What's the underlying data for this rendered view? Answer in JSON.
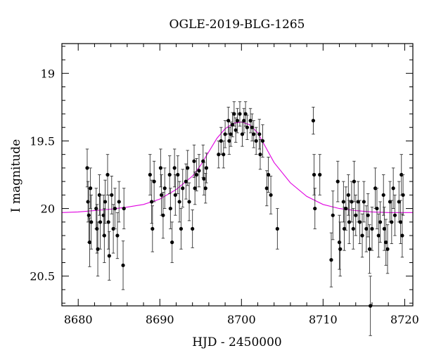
{
  "chart_data": {
    "type": "scatter",
    "title": "OGLE-2019-BLG-1265",
    "xlabel": "HJD - 2450000",
    "ylabel": "I magnitude",
    "xlim": [
      8678,
      8721
    ],
    "ylim": [
      20.72,
      18.78
    ],
    "y_inverted": true,
    "xticks": [
      8680,
      8690,
      8700,
      8710,
      8720
    ],
    "yticks": [
      19,
      19.5,
      20,
      20.5
    ],
    "grid": false,
    "colors": {
      "points": "#000000",
      "model": "#e000e0"
    },
    "model": {
      "name": "",
      "x": [
        8678,
        8680,
        8682,
        8684,
        8686,
        8688,
        8690,
        8692,
        8694,
        8695,
        8696,
        8697,
        8698,
        8699,
        8700,
        8701,
        8702,
        8703,
        8704,
        8706,
        8708,
        8710,
        8712,
        8714,
        8716,
        8718,
        8720,
        8721
      ],
      "y": [
        20.03,
        20.025,
        20.015,
        20.005,
        19.99,
        19.97,
        19.93,
        19.86,
        19.76,
        19.68,
        19.58,
        19.48,
        19.41,
        19.37,
        19.36,
        19.38,
        19.44,
        19.55,
        19.66,
        19.81,
        19.91,
        19.97,
        20.0,
        20.015,
        20.025,
        20.03,
        20.03,
        20.03
      ]
    },
    "series": [
      {
        "name": "",
        "points": [
          {
            "x": 8681.1,
            "y": 19.7,
            "err": 0.14
          },
          {
            "x": 8681.2,
            "y": 19.95,
            "err": 0.15
          },
          {
            "x": 8681.3,
            "y": 20.05,
            "err": 0.2
          },
          {
            "x": 8681.4,
            "y": 20.25,
            "err": 0.18
          },
          {
            "x": 8681.5,
            "y": 19.85,
            "err": 0.15
          },
          {
            "x": 8681.6,
            "y": 20.1,
            "err": 0.2
          },
          {
            "x": 8682.2,
            "y": 20.0,
            "err": 0.15
          },
          {
            "x": 8682.3,
            "y": 20.15,
            "err": 0.18
          },
          {
            "x": 8682.4,
            "y": 20.3,
            "err": 0.2
          },
          {
            "x": 8682.6,
            "y": 19.9,
            "err": 0.15
          },
          {
            "x": 8682.7,
            "y": 20.1,
            "err": 0.2
          },
          {
            "x": 8683.1,
            "y": 20.05,
            "err": 0.15
          },
          {
            "x": 8683.2,
            "y": 20.2,
            "err": 0.2
          },
          {
            "x": 8683.3,
            "y": 19.95,
            "err": 0.16
          },
          {
            "x": 8683.6,
            "y": 19.75,
            "err": 0.15
          },
          {
            "x": 8683.7,
            "y": 20.1,
            "err": 0.2
          },
          {
            "x": 8683.8,
            "y": 20.35,
            "err": 0.18
          },
          {
            "x": 8684.1,
            "y": 19.9,
            "err": 0.14
          },
          {
            "x": 8684.3,
            "y": 20.15,
            "err": 0.18
          },
          {
            "x": 8684.5,
            "y": 20.0,
            "err": 0.15
          },
          {
            "x": 8684.8,
            "y": 20.2,
            "err": 0.17
          },
          {
            "x": 8685.0,
            "y": 19.95,
            "err": 0.15
          },
          {
            "x": 8685.5,
            "y": 20.42,
            "err": 0.18
          },
          {
            "x": 8685.6,
            "y": 20.0,
            "err": 0.15
          },
          {
            "x": 8688.8,
            "y": 19.75,
            "err": 0.15
          },
          {
            "x": 8689.0,
            "y": 19.95,
            "err": 0.16
          },
          {
            "x": 8689.1,
            "y": 20.15,
            "err": 0.17
          },
          {
            "x": 8689.3,
            "y": 19.8,
            "err": 0.15
          },
          {
            "x": 8690.1,
            "y": 19.7,
            "err": 0.14
          },
          {
            "x": 8690.2,
            "y": 19.9,
            "err": 0.15
          },
          {
            "x": 8690.4,
            "y": 20.05,
            "err": 0.17
          },
          {
            "x": 8690.6,
            "y": 19.85,
            "err": 0.15
          },
          {
            "x": 8691.2,
            "y": 19.75,
            "err": 0.14
          },
          {
            "x": 8691.3,
            "y": 20.0,
            "err": 0.15
          },
          {
            "x": 8691.5,
            "y": 20.25,
            "err": 0.15
          },
          {
            "x": 8691.8,
            "y": 19.7,
            "err": 0.14
          },
          {
            "x": 8691.9,
            "y": 19.9,
            "err": 0.15
          },
          {
            "x": 8692.2,
            "y": 19.75,
            "err": 0.14
          },
          {
            "x": 8692.4,
            "y": 19.95,
            "err": 0.15
          },
          {
            "x": 8692.6,
            "y": 20.15,
            "err": 0.15
          },
          {
            "x": 8692.8,
            "y": 19.85,
            "err": 0.14
          },
          {
            "x": 8693.2,
            "y": 19.8,
            "err": 0.13
          },
          {
            "x": 8693.4,
            "y": 19.7,
            "err": 0.13
          },
          {
            "x": 8693.6,
            "y": 19.95,
            "err": 0.14
          },
          {
            "x": 8694.0,
            "y": 20.15,
            "err": 0.14
          },
          {
            "x": 8694.2,
            "y": 19.65,
            "err": 0.12
          },
          {
            "x": 8694.3,
            "y": 19.85,
            "err": 0.12
          },
          {
            "x": 8694.5,
            "y": 19.75,
            "err": 0.12
          },
          {
            "x": 8694.8,
            "y": 19.72,
            "err": 0.12
          },
          {
            "x": 8695.3,
            "y": 19.65,
            "err": 0.12
          },
          {
            "x": 8695.4,
            "y": 19.78,
            "err": 0.12
          },
          {
            "x": 8695.6,
            "y": 19.85,
            "err": 0.11
          },
          {
            "x": 8695.7,
            "y": 19.7,
            "err": 0.11
          },
          {
            "x": 8697.2,
            "y": 19.6,
            "err": 0.1
          },
          {
            "x": 8697.5,
            "y": 19.5,
            "err": 0.1
          },
          {
            "x": 8697.8,
            "y": 19.6,
            "err": 0.1
          },
          {
            "x": 8698.0,
            "y": 19.45,
            "err": 0.1
          },
          {
            "x": 8698.4,
            "y": 19.35,
            "err": 0.1
          },
          {
            "x": 8698.5,
            "y": 19.5,
            "err": 0.1
          },
          {
            "x": 8698.7,
            "y": 19.45,
            "err": 0.09
          },
          {
            "x": 8698.9,
            "y": 19.38,
            "err": 0.09
          },
          {
            "x": 8699.1,
            "y": 19.3,
            "err": 0.09
          },
          {
            "x": 8699.3,
            "y": 19.42,
            "err": 0.09
          },
          {
            "x": 8699.5,
            "y": 19.35,
            "err": 0.09
          },
          {
            "x": 8699.8,
            "y": 19.3,
            "err": 0.09
          },
          {
            "x": 8700.1,
            "y": 19.45,
            "err": 0.09
          },
          {
            "x": 8700.3,
            "y": 19.35,
            "err": 0.09
          },
          {
            "x": 8700.5,
            "y": 19.3,
            "err": 0.09
          },
          {
            "x": 8700.7,
            "y": 19.4,
            "err": 0.09
          },
          {
            "x": 8701.1,
            "y": 19.35,
            "err": 0.09
          },
          {
            "x": 8701.3,
            "y": 19.4,
            "err": 0.1
          },
          {
            "x": 8701.5,
            "y": 19.45,
            "err": 0.1
          },
          {
            "x": 8701.8,
            "y": 19.5,
            "err": 0.1
          },
          {
            "x": 8702.2,
            "y": 19.45,
            "err": 0.11
          },
          {
            "x": 8702.3,
            "y": 19.6,
            "err": 0.11
          },
          {
            "x": 8702.6,
            "y": 19.5,
            "err": 0.12
          },
          {
            "x": 8703.1,
            "y": 19.85,
            "err": 0.13
          },
          {
            "x": 8703.3,
            "y": 19.75,
            "err": 0.13
          },
          {
            "x": 8703.6,
            "y": 19.9,
            "err": 0.14
          },
          {
            "x": 8704.4,
            "y": 20.15,
            "err": 0.15
          },
          {
            "x": 8708.8,
            "y": 19.35,
            "err": 0.1
          },
          {
            "x": 8708.9,
            "y": 19.75,
            "err": 0.15
          },
          {
            "x": 8709.0,
            "y": 20.0,
            "err": 0.15
          },
          {
            "x": 8709.6,
            "y": 19.75,
            "err": 0.15
          },
          {
            "x": 8711.0,
            "y": 20.38,
            "err": 0.2
          },
          {
            "x": 8711.2,
            "y": 20.05,
            "err": 0.18
          },
          {
            "x": 8711.8,
            "y": 19.8,
            "err": 0.15
          },
          {
            "x": 8712.0,
            "y": 20.25,
            "err": 0.2
          },
          {
            "x": 8712.1,
            "y": 20.3,
            "err": 0.2
          },
          {
            "x": 8712.5,
            "y": 19.95,
            "err": 0.15
          },
          {
            "x": 8712.6,
            "y": 20.15,
            "err": 0.16
          },
          {
            "x": 8712.8,
            "y": 20.0,
            "err": 0.16
          },
          {
            "x": 8713.1,
            "y": 19.9,
            "err": 0.15
          },
          {
            "x": 8713.2,
            "y": 20.1,
            "err": 0.16
          },
          {
            "x": 8713.5,
            "y": 19.95,
            "err": 0.15
          },
          {
            "x": 8713.7,
            "y": 20.15,
            "err": 0.15
          },
          {
            "x": 8713.8,
            "y": 19.8,
            "err": 0.15
          },
          {
            "x": 8714.0,
            "y": 20.05,
            "err": 0.15
          },
          {
            "x": 8714.3,
            "y": 19.95,
            "err": 0.15
          },
          {
            "x": 8714.5,
            "y": 20.1,
            "err": 0.16
          },
          {
            "x": 8714.8,
            "y": 20.2,
            "err": 0.16
          },
          {
            "x": 8715.0,
            "y": 19.95,
            "err": 0.15
          },
          {
            "x": 8715.3,
            "y": 20.15,
            "err": 0.17
          },
          {
            "x": 8715.5,
            "y": 20.05,
            "err": 0.16
          },
          {
            "x": 8715.7,
            "y": 20.3,
            "err": 0.18
          },
          {
            "x": 8715.8,
            "y": 20.72,
            "err": 0.22
          },
          {
            "x": 8716.0,
            "y": 20.15,
            "err": 0.16
          },
          {
            "x": 8716.4,
            "y": 19.85,
            "err": 0.15
          },
          {
            "x": 8716.6,
            "y": 20.0,
            "err": 0.15
          },
          {
            "x": 8716.8,
            "y": 20.2,
            "err": 0.16
          },
          {
            "x": 8717.0,
            "y": 20.1,
            "err": 0.15
          },
          {
            "x": 8717.4,
            "y": 19.9,
            "err": 0.15
          },
          {
            "x": 8717.5,
            "y": 20.15,
            "err": 0.16
          },
          {
            "x": 8717.7,
            "y": 20.25,
            "err": 0.17
          },
          {
            "x": 8717.9,
            "y": 20.3,
            "err": 0.18
          },
          {
            "x": 8718.2,
            "y": 19.95,
            "err": 0.15
          },
          {
            "x": 8718.4,
            "y": 20.1,
            "err": 0.16
          },
          {
            "x": 8718.6,
            "y": 19.85,
            "err": 0.15
          },
          {
            "x": 8718.8,
            "y": 20.05,
            "err": 0.15
          },
          {
            "x": 8719.3,
            "y": 19.95,
            "err": 0.15
          },
          {
            "x": 8719.5,
            "y": 20.1,
            "err": 0.16
          },
          {
            "x": 8719.6,
            "y": 19.75,
            "err": 0.15
          },
          {
            "x": 8719.7,
            "y": 20.2,
            "err": 0.16
          },
          {
            "x": 8719.8,
            "y": 19.9,
            "err": 0.15
          }
        ]
      }
    ]
  }
}
